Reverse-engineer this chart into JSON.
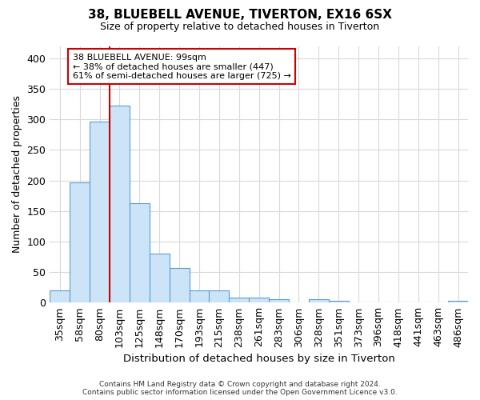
{
  "title_line1": "38, BLUEBELL AVENUE, TIVERTON, EX16 6SX",
  "title_line2": "Size of property relative to detached houses in Tiverton",
  "xlabel": "Distribution of detached houses by size in Tiverton",
  "ylabel": "Number of detached properties",
  "footer_line1": "Contains HM Land Registry data © Crown copyright and database right 2024.",
  "footer_line2": "Contains public sector information licensed under the Open Government Licence v3.0.",
  "categories": [
    "35sqm",
    "58sqm",
    "80sqm",
    "103sqm",
    "125sqm",
    "148sqm",
    "170sqm",
    "193sqm",
    "215sqm",
    "238sqm",
    "261sqm",
    "283sqm",
    "306sqm",
    "328sqm",
    "351sqm",
    "373sqm",
    "396sqm",
    "418sqm",
    "441sqm",
    "463sqm",
    "486sqm"
  ],
  "values": [
    20,
    197,
    296,
    322,
    163,
    80,
    57,
    20,
    20,
    8,
    8,
    5,
    0,
    5,
    3,
    0,
    0,
    0,
    0,
    0,
    3
  ],
  "bar_color": "#cce4f7",
  "bar_edge_color": "#5b9bd5",
  "grid_color": "#d9d9d9",
  "background_color": "#ffffff",
  "vline_index": 2.5,
  "vline_color": "#cc0000",
  "annotation_line1": "38 BLUEBELL AVENUE: 99sqm",
  "annotation_line2": "← 38% of detached houses are smaller (447)",
  "annotation_line3": "61% of semi-detached houses are larger (725) →",
  "annotation_box_facecolor": "#ffffff",
  "annotation_box_edgecolor": "#cc0000",
  "ylim": [
    0,
    420
  ],
  "yticks": [
    0,
    50,
    100,
    150,
    200,
    250,
    300,
    350,
    400
  ]
}
